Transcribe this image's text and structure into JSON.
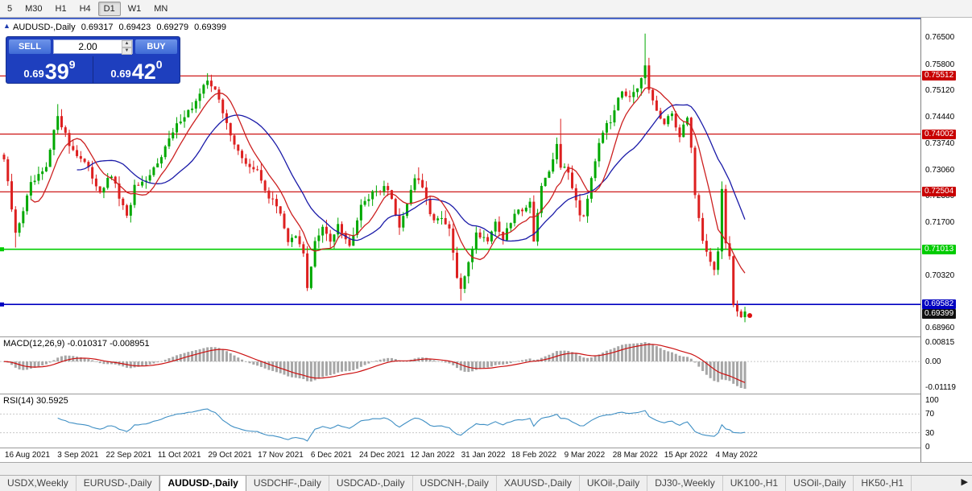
{
  "toolbar": {
    "timeframes": [
      "5",
      "M30",
      "H1",
      "H4",
      "D1",
      "W1",
      "MN"
    ],
    "active": "D1"
  },
  "icons": {
    "chart_collapse": "▲",
    "spinner_up": "▲",
    "spinner_down": "▼",
    "tab_scroll_right": "▶"
  },
  "chart_header": {
    "symbol": "AUDUSD-,Daily",
    "open": "0.69317",
    "high": "0.69423",
    "low": "0.69279",
    "close": "0.69399"
  },
  "trade_panel": {
    "sell_label": "SELL",
    "buy_label": "BUY",
    "volume": "2.00",
    "sell_price": {
      "base": "0.69",
      "big": "39",
      "sup": "9"
    },
    "buy_price": {
      "base": "0.69",
      "big": "42",
      "sup": "0"
    }
  },
  "price_axis": {
    "ticks": [
      0.765,
      0.758,
      0.7512,
      0.7444,
      0.7374,
      0.7306,
      0.7238,
      0.717,
      0.7032,
      0.6896
    ]
  },
  "levels": [
    {
      "value": 0.75512,
      "label": "0.75512",
      "color": "#c80000",
      "type": "resistance"
    },
    {
      "value": 0.74002,
      "label": "0.74002",
      "color": "#c80000",
      "type": "resistance"
    },
    {
      "value": 0.72504,
      "label": "0.72504",
      "color": "#c80000",
      "type": "resistance"
    },
    {
      "value": 0.71013,
      "label": "0.71013",
      "color": "#00cc00",
      "type": "support"
    },
    {
      "value": 0.69582,
      "label": "0.69582",
      "color": "#0000c0",
      "type": "support"
    }
  ],
  "current_price": {
    "value": 0.69399,
    "label": "0.69399",
    "color": "#101010"
  },
  "macd_panel": {
    "label": "MACD(12,26,9) -0.010317 -0.008951",
    "axis_top": "0.00815",
    "axis_zero": "0.00",
    "axis_bottom": "-0.01119"
  },
  "rsi_panel": {
    "label": "RSI(14) 30.5925",
    "levels": [
      100,
      70,
      30,
      0
    ]
  },
  "date_axis": [
    "16 Aug 2021",
    "3 Sep 2021",
    "22 Sep 2021",
    "11 Oct 2021",
    "29 Oct 2021",
    "17 Nov 2021",
    "6 Dec 2021",
    "24 Dec 2021",
    "12 Jan 2022",
    "31 Jan 2022",
    "18 Feb 2022",
    "9 Mar 2022",
    "28 Mar 2022",
    "15 Apr 2022",
    "4 May 2022"
  ],
  "tabs": {
    "items": [
      "USDX,Weekly",
      "EURUSD-,Daily",
      "AUDUSD-,Daily",
      "USDCHF-,Daily",
      "USDCAD-,Daily",
      "USDCNH-,Daily",
      "XAUUSD-,Daily",
      "UKOil-,Daily",
      "DJ30-,Weekly",
      "UK100-,H1",
      "USOil-,Daily",
      "HK50-,H1"
    ],
    "active_index": 2
  },
  "chart_data": {
    "type": "candlestick",
    "symbol": "AUDUSD",
    "timeframe": "Daily",
    "num_bars": 194,
    "last_close": 0.69399,
    "y_range": [
      0.6896,
      0.765
    ],
    "price_anchors": [
      [
        0,
        0.7335
      ],
      [
        3,
        0.714
      ],
      [
        7,
        0.7268
      ],
      [
        11,
        0.731
      ],
      [
        14,
        0.7452
      ],
      [
        17,
        0.7372
      ],
      [
        21,
        0.7325
      ],
      [
        25,
        0.7252
      ],
      [
        28,
        0.7292
      ],
      [
        32,
        0.7182
      ],
      [
        34,
        0.7262
      ],
      [
        37,
        0.7272
      ],
      [
        40,
        0.733
      ],
      [
        43,
        0.7385
      ],
      [
        46,
        0.744
      ],
      [
        49,
        0.747
      ],
      [
        51,
        0.75
      ],
      [
        53,
        0.7542
      ],
      [
        55,
        0.7518
      ],
      [
        57,
        0.7452
      ],
      [
        59,
        0.7402
      ],
      [
        62,
        0.7332
      ],
      [
        66,
        0.7302
      ],
      [
        69,
        0.7238
      ],
      [
        72,
        0.7198
      ],
      [
        74,
        0.7122
      ],
      [
        76,
        0.7132
      ],
      [
        78,
        0.7088
      ],
      [
        79,
        0.7002
      ],
      [
        81,
        0.712
      ],
      [
        83,
        0.7155
      ],
      [
        85,
        0.7122
      ],
      [
        87,
        0.7172
      ],
      [
        90,
        0.7108
      ],
      [
        93,
        0.7222
      ],
      [
        97,
        0.7252
      ],
      [
        99,
        0.7266
      ],
      [
        101,
        0.7232
      ],
      [
        103,
        0.7158
      ],
      [
        107,
        0.7288
      ],
      [
        109,
        0.7262
      ],
      [
        111,
        0.7188
      ],
      [
        114,
        0.7176
      ],
      [
        116,
        0.7152
      ],
      [
        118,
        0.7028
      ],
      [
        119,
        0.6992
      ],
      [
        121,
        0.7072
      ],
      [
        123,
        0.7142
      ],
      [
        126,
        0.7128
      ],
      [
        128,
        0.7172
      ],
      [
        130,
        0.7128
      ],
      [
        133,
        0.7192
      ],
      [
        137,
        0.7222
      ],
      [
        138,
        0.7128
      ],
      [
        140,
        0.7265
      ],
      [
        142,
        0.7295
      ],
      [
        144,
        0.7375
      ],
      [
        145,
        0.7318
      ],
      [
        147,
        0.73
      ],
      [
        150,
        0.7195
      ],
      [
        151,
        0.719
      ],
      [
        153,
        0.729
      ],
      [
        155,
        0.7382
      ],
      [
        156,
        0.741
      ],
      [
        158,
        0.7432
      ],
      [
        160,
        0.7502
      ],
      [
        161,
        0.7515
      ],
      [
        163,
        0.7492
      ],
      [
        165,
        0.7512
      ],
      [
        166,
        0.7542
      ],
      [
        167,
        0.7576
      ],
      [
        168,
        0.7512
      ],
      [
        170,
        0.7462
      ],
      [
        172,
        0.7422
      ],
      [
        174,
        0.7456
      ],
      [
        176,
        0.7392
      ],
      [
        178,
        0.7448
      ],
      [
        179,
        0.7365
      ],
      [
        180,
        0.7242
      ],
      [
        181,
        0.7182
      ],
      [
        182,
        0.7128
      ],
      [
        183,
        0.7098
      ],
      [
        184,
        0.7066
      ],
      [
        185,
        0.7052
      ],
      [
        186,
        0.7096
      ],
      [
        187,
        0.7256
      ],
      [
        188,
        0.7112
      ],
      [
        189,
        0.7076
      ],
      [
        190,
        0.6955
      ],
      [
        191,
        0.6942
      ],
      [
        192,
        0.6932
      ],
      [
        193,
        0.694
      ]
    ],
    "wick_events": [
      {
        "i": 3,
        "low": 0.7106
      },
      {
        "i": 14,
        "high": 0.7478
      },
      {
        "i": 53,
        "high": 0.7556
      },
      {
        "i": 79,
        "low": 0.6993
      },
      {
        "i": 108,
        "high": 0.7314
      },
      {
        "i": 119,
        "low": 0.6968
      },
      {
        "i": 145,
        "high": 0.744
      },
      {
        "i": 167,
        "high": 0.7661
      },
      {
        "i": 187,
        "high": 0.7266
      },
      {
        "i": 193,
        "low": 0.6912
      }
    ],
    "ma_fast_period": 8,
    "ma_slow_period": 20,
    "macd_params": [
      12,
      26,
      9
    ],
    "rsi_period": 14,
    "up_color": "#00a800",
    "down_color": "#dd2020",
    "ma_fast_color": "#cc2020",
    "ma_slow_color": "#1a1aa8",
    "macd_hist_color": "#a6a6a6",
    "macd_signal_color": "#cc1111",
    "rsi_color": "#3f8fc4"
  }
}
